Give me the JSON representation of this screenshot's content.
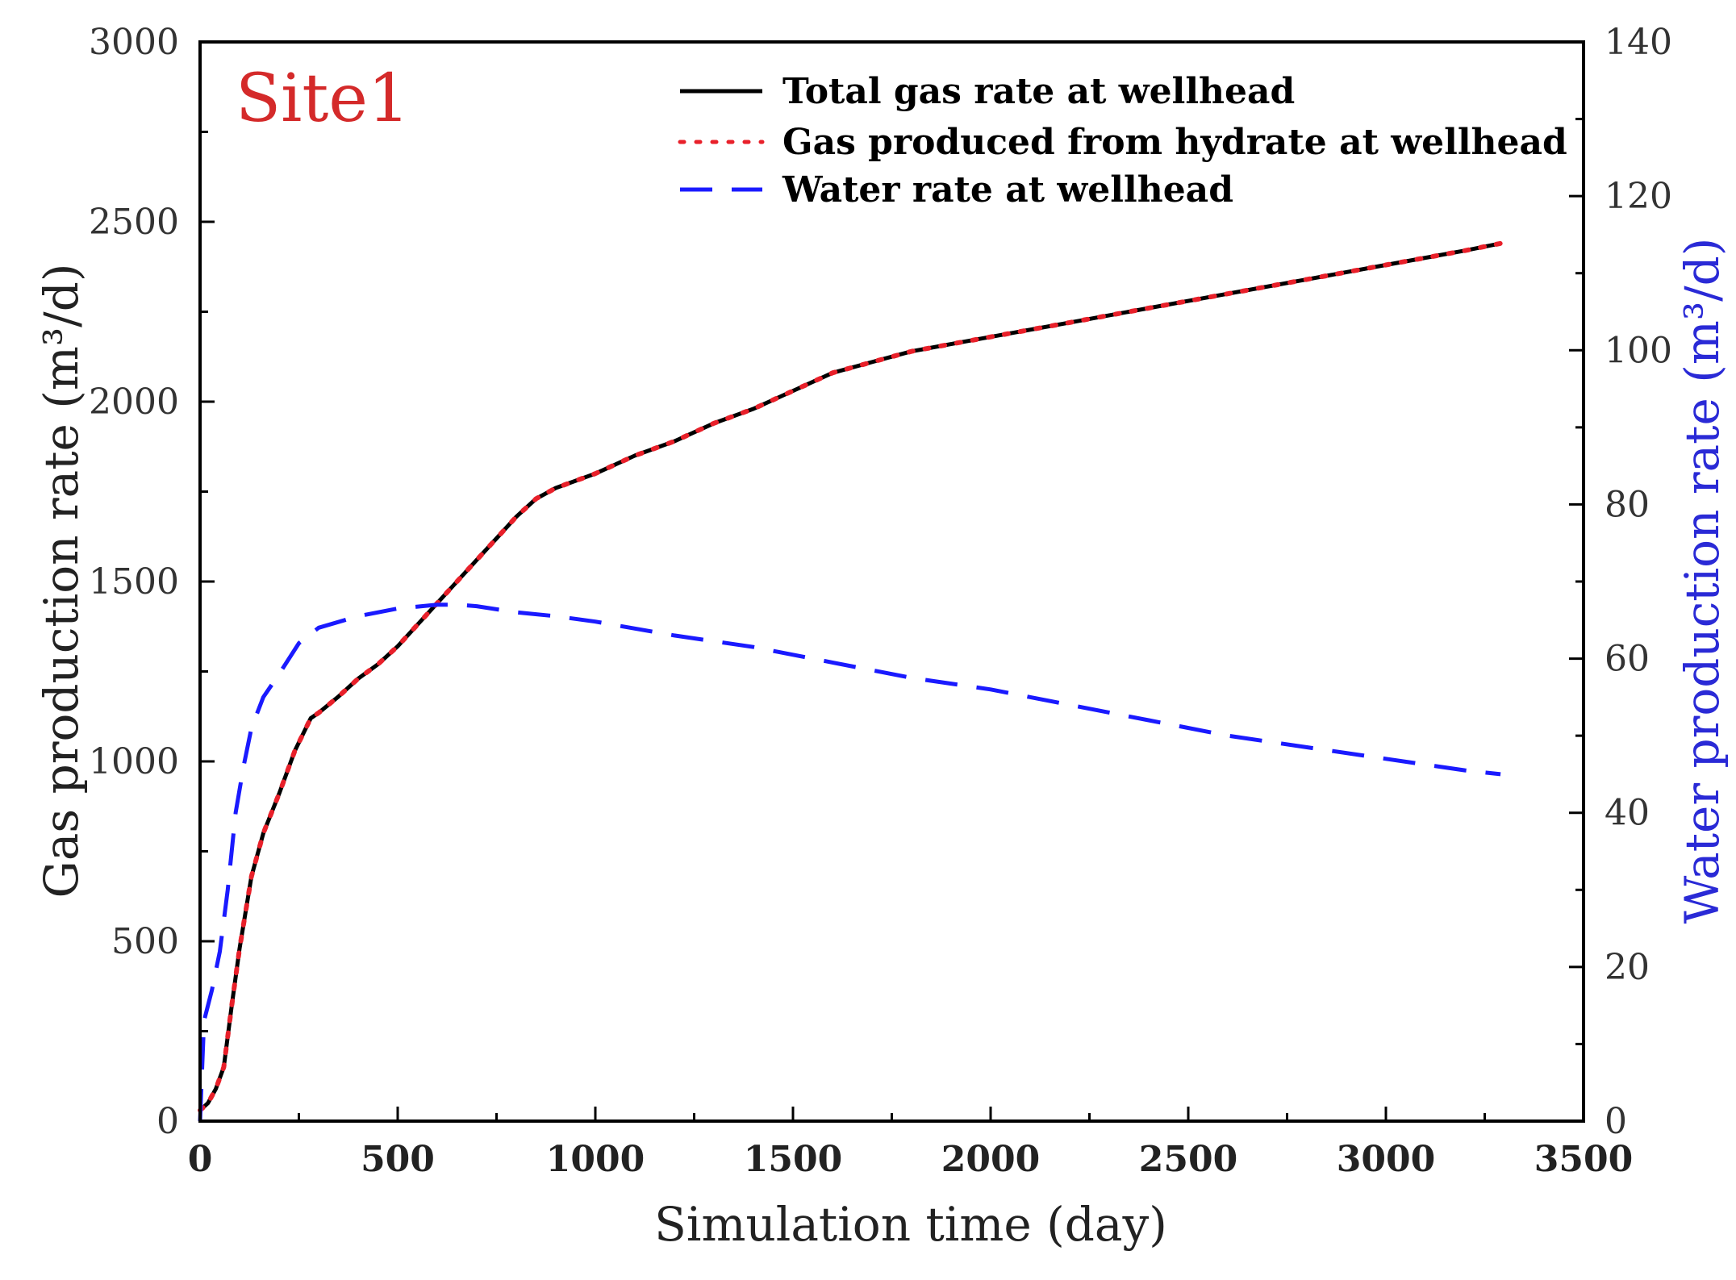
{
  "chart_data": {
    "type": "line",
    "annotation": "Site1",
    "xlabel": "Simulation time  (day)",
    "ylabel_left": "Gas production rate (m³/d)",
    "ylabel_right": "Water production rate (m³/d)",
    "xlim": [
      0,
      3500
    ],
    "ylim_left": [
      0,
      3000
    ],
    "ylim_right": [
      0,
      140
    ],
    "x_ticks": [
      "0",
      "500",
      "1000",
      "1500",
      "2000",
      "2500",
      "3000",
      "3500"
    ],
    "y_left_ticks": [
      "0",
      "500",
      "1000",
      "1500",
      "2000",
      "2500",
      "3000"
    ],
    "y_right_ticks": [
      "0",
      "20",
      "40",
      "60",
      "80",
      "100",
      "120",
      "140"
    ],
    "legend_position": "top-center",
    "colors": {
      "total_gas": "#000000",
      "hydrate_gas": "#e8202a",
      "water": "#1a1aff",
      "annotation": "#d42a2a",
      "right_axis_label": "#2a2ad6"
    },
    "series": [
      {
        "name": "Total gas rate at wellhead",
        "axis": "left",
        "style": "solid",
        "x": [
          0,
          20,
          40,
          60,
          80,
          100,
          130,
          160,
          200,
          240,
          280,
          300,
          350,
          400,
          450,
          500,
          550,
          600,
          650,
          700,
          750,
          800,
          850,
          900,
          950,
          1000,
          1100,
          1200,
          1300,
          1400,
          1500,
          1600,
          1700,
          1800,
          1900,
          2000,
          2200,
          2400,
          2600,
          2800,
          3000,
          3200,
          3290
        ],
        "y": [
          30,
          50,
          90,
          150,
          320,
          480,
          680,
          800,
          910,
          1030,
          1120,
          1135,
          1180,
          1230,
          1270,
          1320,
          1380,
          1440,
          1500,
          1560,
          1620,
          1680,
          1730,
          1760,
          1780,
          1800,
          1850,
          1890,
          1940,
          1980,
          2030,
          2080,
          2110,
          2140,
          2160,
          2180,
          2220,
          2260,
          2300,
          2340,
          2380,
          2420,
          2440
        ]
      },
      {
        "name": "Gas produced from hydrate at wellhead",
        "axis": "left",
        "style": "dotted",
        "x": [
          0,
          20,
          40,
          60,
          80,
          100,
          130,
          160,
          200,
          240,
          280,
          300,
          350,
          400,
          450,
          500,
          550,
          600,
          650,
          700,
          750,
          800,
          850,
          900,
          950,
          1000,
          1100,
          1200,
          1300,
          1400,
          1500,
          1600,
          1700,
          1800,
          1900,
          2000,
          2200,
          2400,
          2600,
          2800,
          3000,
          3200,
          3290
        ],
        "y": [
          30,
          50,
          90,
          150,
          320,
          480,
          680,
          800,
          910,
          1030,
          1120,
          1135,
          1180,
          1230,
          1270,
          1320,
          1380,
          1440,
          1500,
          1560,
          1620,
          1680,
          1730,
          1760,
          1780,
          1800,
          1850,
          1890,
          1940,
          1980,
          2030,
          2080,
          2110,
          2140,
          2160,
          2180,
          2220,
          2260,
          2300,
          2340,
          2380,
          2420,
          2440
        ]
      },
      {
        "name": "Water rate at wellhead",
        "axis": "right",
        "style": "dashed",
        "x": [
          0,
          10,
          30,
          50,
          70,
          90,
          110,
          130,
          160,
          200,
          250,
          300,
          400,
          500,
          600,
          650,
          700,
          800,
          900,
          1000,
          1200,
          1400,
          1600,
          1800,
          2000,
          2200,
          2400,
          2600,
          2800,
          3000,
          3200,
          3290
        ],
        "y": [
          0,
          13,
          17,
          22,
          30,
          40,
          46,
          51,
          55,
          58,
          62,
          64,
          65.5,
          66.5,
          67,
          67,
          66.8,
          66,
          65.5,
          64.8,
          63,
          61.5,
          59.5,
          57.5,
          56,
          54,
          52,
          50,
          48.5,
          47,
          45.5,
          45
        ]
      }
    ]
  }
}
